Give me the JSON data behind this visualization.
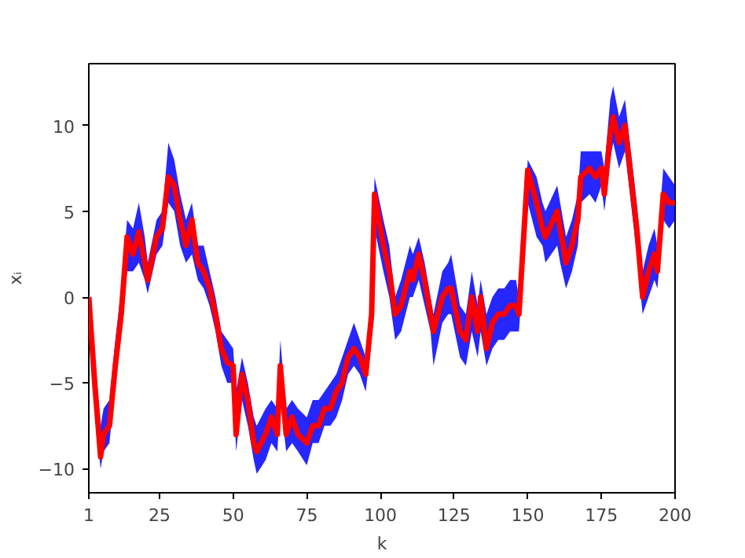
{
  "chart_data": {
    "type": "line",
    "xlabel": "k",
    "ylabel": "xᵢ",
    "xlim": [
      1,
      200
    ],
    "ylim": [
      -11.4,
      13.6
    ],
    "xticks": [
      1,
      25,
      50,
      75,
      100,
      125,
      150,
      175,
      200
    ],
    "yticks": [
      -10,
      -5,
      0,
      5,
      10
    ],
    "grid": false,
    "series": [
      {
        "color": "#ff0000",
        "x": [
          1,
          3,
          5,
          6,
          8,
          10,
          12,
          14,
          16,
          18,
          20,
          21,
          24,
          26,
          28,
          30,
          32,
          34,
          36,
          38,
          40,
          42,
          44,
          46,
          48,
          50,
          51,
          53,
          55,
          57,
          58,
          61,
          63,
          65,
          66,
          68,
          70,
          72,
          75,
          77,
          79,
          81,
          83,
          85,
          87,
          89,
          91,
          93,
          95,
          97,
          98,
          101,
          103,
          105,
          107,
          110,
          111,
          113,
          115,
          117,
          118,
          121,
          123,
          124,
          127,
          129,
          131,
          133,
          134,
          136,
          138,
          140,
          142,
          144,
          146,
          147,
          150,
          153,
          155,
          156,
          160,
          161,
          163,
          165,
          167,
          168,
          171,
          173,
          175,
          176,
          178,
          179,
          181,
          183,
          185,
          187,
          189,
          191,
          193,
          194,
          196,
          198,
          200
        ],
        "values": [
          0,
          -5,
          -9.3,
          -8,
          -7.5,
          -4,
          -1,
          3.5,
          2.5,
          3.8,
          2,
          1,
          3.5,
          4,
          7,
          6.5,
          4.5,
          3,
          4.5,
          2,
          1.5,
          0.5,
          -1,
          -3,
          -3.8,
          -4,
          -8,
          -4.5,
          -6,
          -8.5,
          -9,
          -8,
          -7,
          -8,
          -4,
          -8,
          -7,
          -8,
          -8.5,
          -7.5,
          -7.5,
          -6.5,
          -6.5,
          -5.5,
          -5,
          -3.5,
          -3,
          -3.5,
          -4.5,
          -1,
          6,
          3,
          1.5,
          -1,
          -0.5,
          1.5,
          1,
          2.5,
          1,
          -1,
          -2,
          0,
          0.5,
          0.5,
          -2,
          -2.5,
          0,
          -2,
          0,
          -3,
          -1.5,
          -1,
          -1,
          -0.5,
          -0.5,
          -1,
          7.4,
          5.5,
          4,
          3.5,
          5,
          4,
          2,
          3,
          4.5,
          7,
          7.5,
          7,
          7.5,
          6,
          9.5,
          10.5,
          9,
          10,
          7,
          4,
          0,
          1.5,
          2.5,
          1.5,
          6,
          5.5,
          5.5
        ],
        "lower": [
          -0.5,
          -6.5,
          -10,
          -9,
          -8.5,
          -5,
          -2,
          1.5,
          1.5,
          2,
          1,
          0.2,
          2.5,
          3,
          5.5,
          5,
          3,
          2,
          2.5,
          1,
          0.5,
          -0.5,
          -2,
          -4,
          -5,
          -5,
          -9,
          -6,
          -7.5,
          -9.5,
          -10.3,
          -9.5,
          -8.5,
          -9,
          -6,
          -9,
          -8.5,
          -9,
          -9.8,
          -8.5,
          -8.5,
          -7.5,
          -7.5,
          -7,
          -6,
          -4.5,
          -4,
          -4.5,
          -5.5,
          -2.5,
          4,
          1.5,
          0,
          -2.5,
          -2,
          0,
          0,
          1,
          -0.5,
          -2,
          -4,
          -1.5,
          -1,
          -1,
          -3.5,
          -4,
          -2,
          -3.5,
          -2,
          -4,
          -3,
          -2.5,
          -2.5,
          -2,
          -2,
          -2,
          5.5,
          3.5,
          3,
          2,
          3,
          2,
          0.5,
          1.5,
          3,
          5.5,
          6,
          5.5,
          6.5,
          5,
          8,
          9,
          7.5,
          8.5,
          5.5,
          2.5,
          -1,
          0,
          1,
          0.5,
          4.5,
          4,
          4.5
        ],
        "upper": [
          0.5,
          -3.5,
          -7.5,
          -6.5,
          -6,
          -2.5,
          0.5,
          4.5,
          4,
          5.5,
          3.5,
          2,
          4.5,
          5,
          9,
          8,
          6,
          4.5,
          5.5,
          3,
          3,
          1.5,
          0,
          -2,
          -2.5,
          -3,
          -5.5,
          -3.5,
          -5,
          -7,
          -7.5,
          -6.5,
          -6,
          -6.5,
          -2.5,
          -6.5,
          -6,
          -6.5,
          -7,
          -6,
          -6,
          -5.5,
          -5,
          -4.5,
          -3.5,
          -2.5,
          -1.5,
          -2.5,
          -3.5,
          0,
          7,
          4.5,
          3,
          0,
          1,
          3,
          2.5,
          3.5,
          2,
          0,
          -1,
          1.5,
          2,
          2.5,
          -0.5,
          -1,
          1.5,
          -0.5,
          1,
          -1,
          0,
          0.5,
          0.5,
          1,
          1,
          0,
          8,
          7,
          5.5,
          5,
          6.5,
          5.5,
          3.5,
          4.5,
          6,
          8.5,
          8.5,
          8.5,
          8.5,
          7.5,
          11.5,
          12.3,
          10.5,
          11.5,
          8.5,
          5.5,
          1.5,
          3,
          4,
          3,
          7.5,
          7,
          6.5
        ]
      }
    ]
  }
}
